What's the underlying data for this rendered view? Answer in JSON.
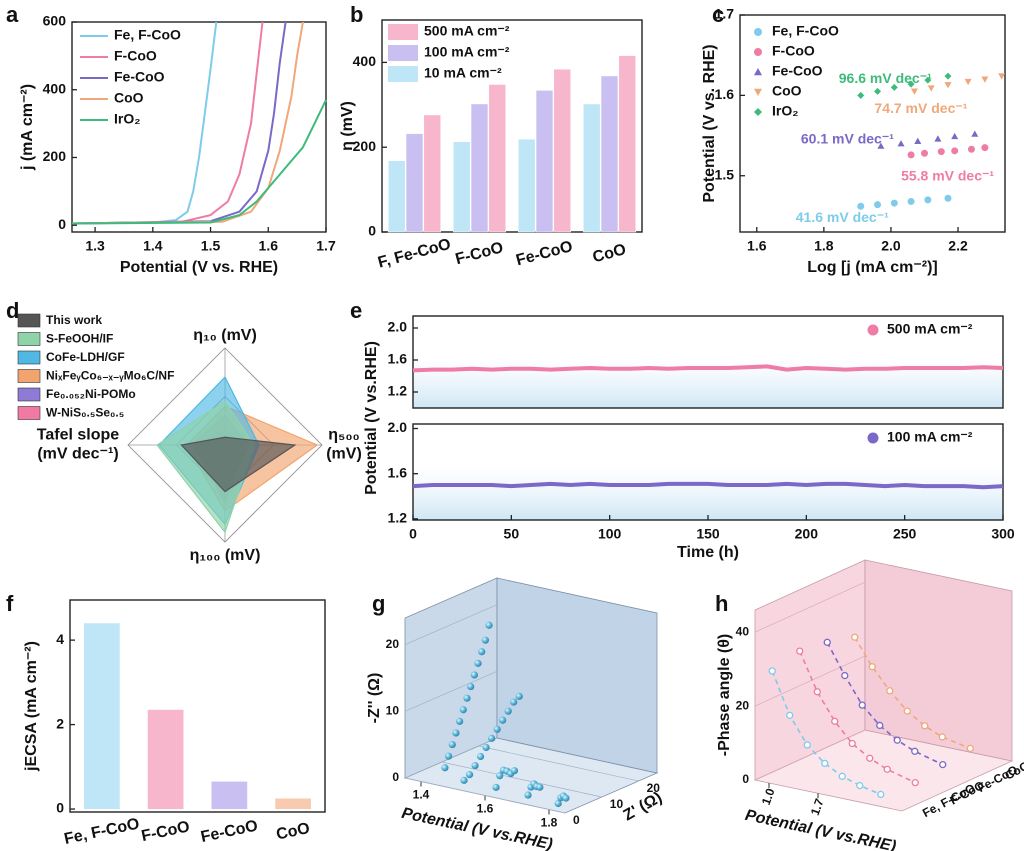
{
  "chart_data": [
    {
      "type": "line",
      "panel_label": "a",
      "xlabel": "Potential (V vs. RHE)",
      "ylabel": "j (mA cm⁻²)",
      "xlim": [
        1.26,
        1.7
      ],
      "ylim": [
        -20,
        600
      ],
      "xticks": [
        1.3,
        1.4,
        1.5,
        1.6,
        1.7
      ],
      "yticks": [
        0,
        200,
        400,
        600
      ],
      "legend": "upper left",
      "series": [
        {
          "name": "Fe, F-CoO",
          "color": "#7fcbea",
          "x": [
            1.26,
            1.4,
            1.44,
            1.46,
            1.47,
            1.48,
            1.49,
            1.5,
            1.51
          ],
          "values": [
            5,
            8,
            15,
            40,
            100,
            200,
            330,
            460,
            600
          ]
        },
        {
          "name": "F-CoO",
          "color": "#ee7ca6",
          "x": [
            1.26,
            1.45,
            1.5,
            1.53,
            1.55,
            1.57,
            1.58,
            1.59
          ],
          "values": [
            5,
            10,
            30,
            70,
            150,
            300,
            450,
            600
          ]
        },
        {
          "name": "Fe-CoO",
          "color": "#7b68c8",
          "x": [
            1.26,
            1.5,
            1.55,
            1.58,
            1.6,
            1.61,
            1.62,
            1.63
          ],
          "values": [
            5,
            12,
            40,
            100,
            220,
            330,
            480,
            600
          ]
        },
        {
          "name": "CoO",
          "color": "#f0a77a",
          "x": [
            1.26,
            1.52,
            1.57,
            1.6,
            1.62,
            1.64,
            1.65,
            1.66
          ],
          "values": [
            5,
            10,
            40,
            110,
            220,
            380,
            500,
            600
          ]
        },
        {
          "name": "IrO₂",
          "color": "#3dbb7a",
          "x": [
            1.26,
            1.5,
            1.55,
            1.58,
            1.6,
            1.63,
            1.66,
            1.68,
            1.7
          ],
          "values": [
            5,
            8,
            30,
            70,
            110,
            170,
            230,
            300,
            370
          ]
        }
      ]
    },
    {
      "type": "grouped-bar",
      "panel_label": "b",
      "ylabel": "η (mV)",
      "categories": [
        "F, Fe-CoO",
        "F-CoO",
        "Fe-CoO",
        "CoO"
      ],
      "ylim": [
        0,
        500
      ],
      "yticks": [
        0,
        200,
        400
      ],
      "legend": "upper left",
      "series": [
        {
          "name": "10 mA cm⁻²",
          "color": "#bfe6f7",
          "values": [
            168,
            213,
            219,
            302
          ]
        },
        {
          "name": "100 mA cm⁻²",
          "color": "#c9bff0",
          "values": [
            232,
            302,
            334,
            368
          ]
        },
        {
          "name": "500 mA cm⁻²",
          "color": "#f7b6cb",
          "values": [
            276,
            348,
            384,
            416
          ]
        }
      ]
    },
    {
      "type": "scatter",
      "panel_label": "c",
      "xlabel": "Log [j (mA cm⁻²)]",
      "ylabel": "Potential (V vs. RHE)",
      "xlim": [
        1.55,
        2.34
      ],
      "ylim": [
        1.43,
        1.7
      ],
      "xticks": [
        1.6,
        1.8,
        {
          "value": 2,
          "label": "2.0"
        },
        2.2
      ],
      "yticks": [
        1.5,
        1.6,
        1.7
      ],
      "legend": "upper left",
      "series": [
        {
          "name": "Fe, F-CoO",
          "color": "#7fcbea",
          "marker": "circle",
          "annotation": "41.6 mV dec⁻¹",
          "x": [
            1.91,
            1.96,
            2.01,
            2.06,
            2.11,
            2.17
          ],
          "values": [
            1.462,
            1.464,
            1.466,
            1.468,
            1.47,
            1.472
          ]
        },
        {
          "name": "F-CoO",
          "color": "#ee7ca6",
          "marker": "circle",
          "annotation": "55.8 mV dec⁻¹",
          "x": [
            2.06,
            2.1,
            2.15,
            2.19,
            2.24,
            2.28
          ],
          "values": [
            1.526,
            1.528,
            1.53,
            1.531,
            1.533,
            1.535
          ]
        },
        {
          "name": "Fe-CoO",
          "color": "#7b68c8",
          "marker": "triangle",
          "annotation": "60.1 mV dec⁻¹",
          "x": [
            1.97,
            2.03,
            2.08,
            2.14,
            2.19,
            2.25
          ],
          "values": [
            1.537,
            1.54,
            1.543,
            1.546,
            1.549,
            1.552
          ]
        },
        {
          "name": "CoO",
          "color": "#f0a77a",
          "marker": "triangle-down",
          "annotation": "74.7 mV dec⁻¹",
          "x": [
            2.07,
            2.12,
            2.17,
            2.23,
            2.28,
            2.33
          ],
          "values": [
            1.605,
            1.609,
            1.613,
            1.617,
            1.62,
            1.624
          ]
        },
        {
          "name": "IrO₂",
          "color": "#3dbb7a",
          "marker": "diamond",
          "annotation": "96.6 mV dec⁻¹",
          "x": [
            1.91,
            1.96,
            2.01,
            2.06,
            2.11,
            2.17
          ],
          "values": [
            1.6,
            1.605,
            1.61,
            1.614,
            1.619,
            1.624
          ]
        }
      ]
    },
    {
      "type": "radar",
      "panel_label": "d",
      "axes": [
        "η₁₀ (mV)",
        "η₅₀₀\n(mV)",
        "η₁₀₀ (mV)",
        "Tafel slope\n(mV dec⁻¹)"
      ],
      "rlim": [
        0,
        1
      ],
      "rticks": [
        0.5,
        1
      ],
      "series": [
        {
          "name": "This work",
          "color": "#555555",
          "values": [
            0.08,
            0.72,
            0.48,
            0.45
          ]
        },
        {
          "name": "S-FeOOH/IF",
          "color": "#8fd3a8",
          "values": [
            0.45,
            0.3,
            0.9,
            0.7
          ]
        },
        {
          "name": "CoFe-LDH/GF",
          "color": "#4fb8e3",
          "values": [
            0.7,
            0.35,
            0.82,
            0.68
          ]
        },
        {
          "name": "NiₓFeᵧCo₆₋ₓ₋ᵧMo₆C/NF",
          "color": "#f2a46e",
          "values": [
            0.4,
            0.95,
            0.68,
            0.4
          ]
        },
        {
          "name": "Fe₀.₀₅₂Ni-POMo",
          "color": "#8f7bd6",
          "values": [
            0.15,
            0.2,
            0.6,
            0.3
          ]
        },
        {
          "name": "W-NiS₀.₅Se₀.₅",
          "color": "#f07aa4",
          "values": [
            0.3,
            0.25,
            0.5,
            0.35
          ]
        }
      ]
    },
    {
      "type": "line",
      "panel_label": "e",
      "ylabel": "Potential (V vs.RHE)",
      "xlim": [
        0,
        300
      ],
      "ylim": [
        1.0,
        2.15
      ],
      "yticks": [
        1.2,
        1.6,
        {
          "value": 2,
          "label": "2.0"
        }
      ],
      "legend": "upper right",
      "series": [
        {
          "name": "500 mA cm⁻²",
          "color": "#ee7ca6",
          "x": [
            0,
            10,
            20,
            30,
            40,
            50,
            60,
            70,
            80,
            90,
            100,
            110,
            120,
            130,
            140,
            150,
            160,
            170,
            180,
            190,
            200,
            210,
            220,
            230,
            240,
            250,
            260,
            270,
            280,
            290,
            300
          ],
          "values": [
            1.47,
            1.48,
            1.48,
            1.49,
            1.48,
            1.49,
            1.49,
            1.48,
            1.49,
            1.5,
            1.49,
            1.49,
            1.5,
            1.49,
            1.5,
            1.5,
            1.5,
            1.51,
            1.52,
            1.48,
            1.5,
            1.49,
            1.48,
            1.49,
            1.49,
            1.5,
            1.5,
            1.5,
            1.5,
            1.51,
            1.5
          ]
        }
      ]
    },
    {
      "type": "line",
      "xlabel": "Time (h)",
      "xlim": [
        0,
        300
      ],
      "ylim": [
        1.19,
        2.04
      ],
      "xticks": [
        0,
        50,
        100,
        150,
        200,
        250,
        300
      ],
      "yticks": [
        1.2,
        1.6,
        {
          "value": 2,
          "label": "2.0"
        }
      ],
      "legend": "upper right",
      "series": [
        {
          "name": "100 mA cm⁻²",
          "color": "#7b68c8",
          "x": [
            0,
            10,
            20,
            30,
            40,
            50,
            60,
            70,
            80,
            90,
            100,
            110,
            120,
            130,
            140,
            150,
            160,
            170,
            180,
            190,
            200,
            210,
            220,
            230,
            240,
            250,
            260,
            270,
            280,
            290,
            300
          ],
          "values": [
            1.49,
            1.5,
            1.5,
            1.5,
            1.5,
            1.49,
            1.5,
            1.51,
            1.5,
            1.51,
            1.5,
            1.5,
            1.5,
            1.51,
            1.51,
            1.51,
            1.5,
            1.5,
            1.5,
            1.51,
            1.5,
            1.51,
            1.51,
            1.5,
            1.49,
            1.5,
            1.49,
            1.49,
            1.49,
            1.48,
            1.49
          ]
        }
      ]
    },
    {
      "type": "bar",
      "panel_label": "f",
      "ylabel": "jECSA (mA cm⁻²)",
      "categories": [
        "Fe, F-CoO",
        "F-CoO",
        "Fe-CoO",
        "CoO"
      ],
      "values": [
        4.4,
        2.35,
        0.65,
        0.25
      ],
      "colors": [
        "#bfe6f7",
        "#f7b6cb",
        "#c9bff0",
        "#f8cbb0"
      ],
      "ylim": [
        -0.07,
        4.95
      ],
      "yticks": [
        0,
        2,
        4
      ]
    },
    {
      "type": "scatter3d",
      "panel_label": "g",
      "xlabel": "Potential (V vs.RHE)",
      "ylabel": "Z' (Ω)",
      "zlabel": "-Z'' (Ω)",
      "xlim": [
        1.35,
        1.85
      ],
      "ylim": [
        0,
        25
      ],
      "zlim": [
        0,
        24
      ],
      "xticks": [
        1.4,
        1.6,
        1.8
      ],
      "yticks": [
        0,
        10,
        20
      ],
      "zticks": [
        0,
        10,
        20
      ],
      "color": "#5bb8dc",
      "series": [
        {
          "potential": 1.4,
          "x": [
            6.5,
            7.5,
            8.5,
            9.5,
            10.5,
            11.5,
            12.5,
            13.5,
            14.5,
            15.5,
            16.5,
            17.5,
            18.5
          ],
          "values": [
            0.5,
            2,
            3.5,
            5,
            6.5,
            8,
            9.5,
            11,
            12.5,
            14,
            15.5,
            17,
            19
          ]
        },
        {
          "potential": 1.5,
          "x": [
            3,
            4.5,
            6,
            7.5,
            9,
            10.5,
            12,
            13.5,
            15,
            16.5,
            18
          ],
          "values": [
            0.5,
            1,
            2,
            3,
            4,
            5,
            6,
            7,
            8,
            9,
            9.5
          ]
        },
        {
          "potential": 1.6,
          "x": [
            3,
            4,
            5,
            6,
            7,
            8
          ],
          "values": [
            0.5,
            2,
            2.6,
            2.2,
            1.6,
            1.8
          ]
        },
        {
          "potential": 1.7,
          "x": [
            3,
            3.8,
            4.6,
            5.4,
            6.2
          ],
          "values": [
            0.4,
            1.4,
            1.7,
            1.1,
            0.8
          ]
        },
        {
          "potential": 1.8,
          "x": [
            2.5,
            3.2,
            3.9,
            4.6
          ],
          "values": [
            0.3,
            1,
            1.1,
            0.6
          ]
        }
      ]
    },
    {
      "type": "line3d",
      "panel_label": "h",
      "xlabel": "Potential (V vs.RHE)",
      "zlabel": "-Phase angle (θ)",
      "xlim": [
        0.8,
        2.9
      ],
      "xticks": [
        {
          "value": 1,
          "label": "1.0"
        },
        1.7
      ],
      "zlim": [
        0,
        46
      ],
      "zticks": [
        0,
        20,
        40
      ],
      "categories": [
        "Fe, F-CoO",
        "F-CoO",
        "Fe-CoO",
        "CoO"
      ],
      "series": [
        {
          "color": "#7fcbea",
          "x": [
            0.85,
            1.1,
            1.35,
            1.6,
            1.85,
            2.1,
            2.4
          ],
          "values": [
            28,
            17,
            10,
            6,
            3.5,
            2,
            0.8
          ]
        },
        {
          "color": "#ee7ca6",
          "x": [
            0.85,
            1.1,
            1.35,
            1.6,
            1.85,
            2.1,
            2.5
          ],
          "values": [
            30,
            20,
            13,
            8,
            5,
            3,
            1
          ]
        },
        {
          "color": "#7b68c8",
          "x": [
            0.85,
            1.1,
            1.35,
            1.6,
            1.85,
            2.1,
            2.5
          ],
          "values": [
            29,
            21,
            14,
            9.5,
            6.5,
            4.5,
            2.5
          ]
        },
        {
          "color": "#f0a77a",
          "x": [
            0.85,
            1.1,
            1.35,
            1.6,
            1.85,
            2.1,
            2.5
          ],
          "values": [
            27,
            20,
            14.5,
            10,
            7,
            5,
            3.5
          ]
        }
      ]
    }
  ]
}
